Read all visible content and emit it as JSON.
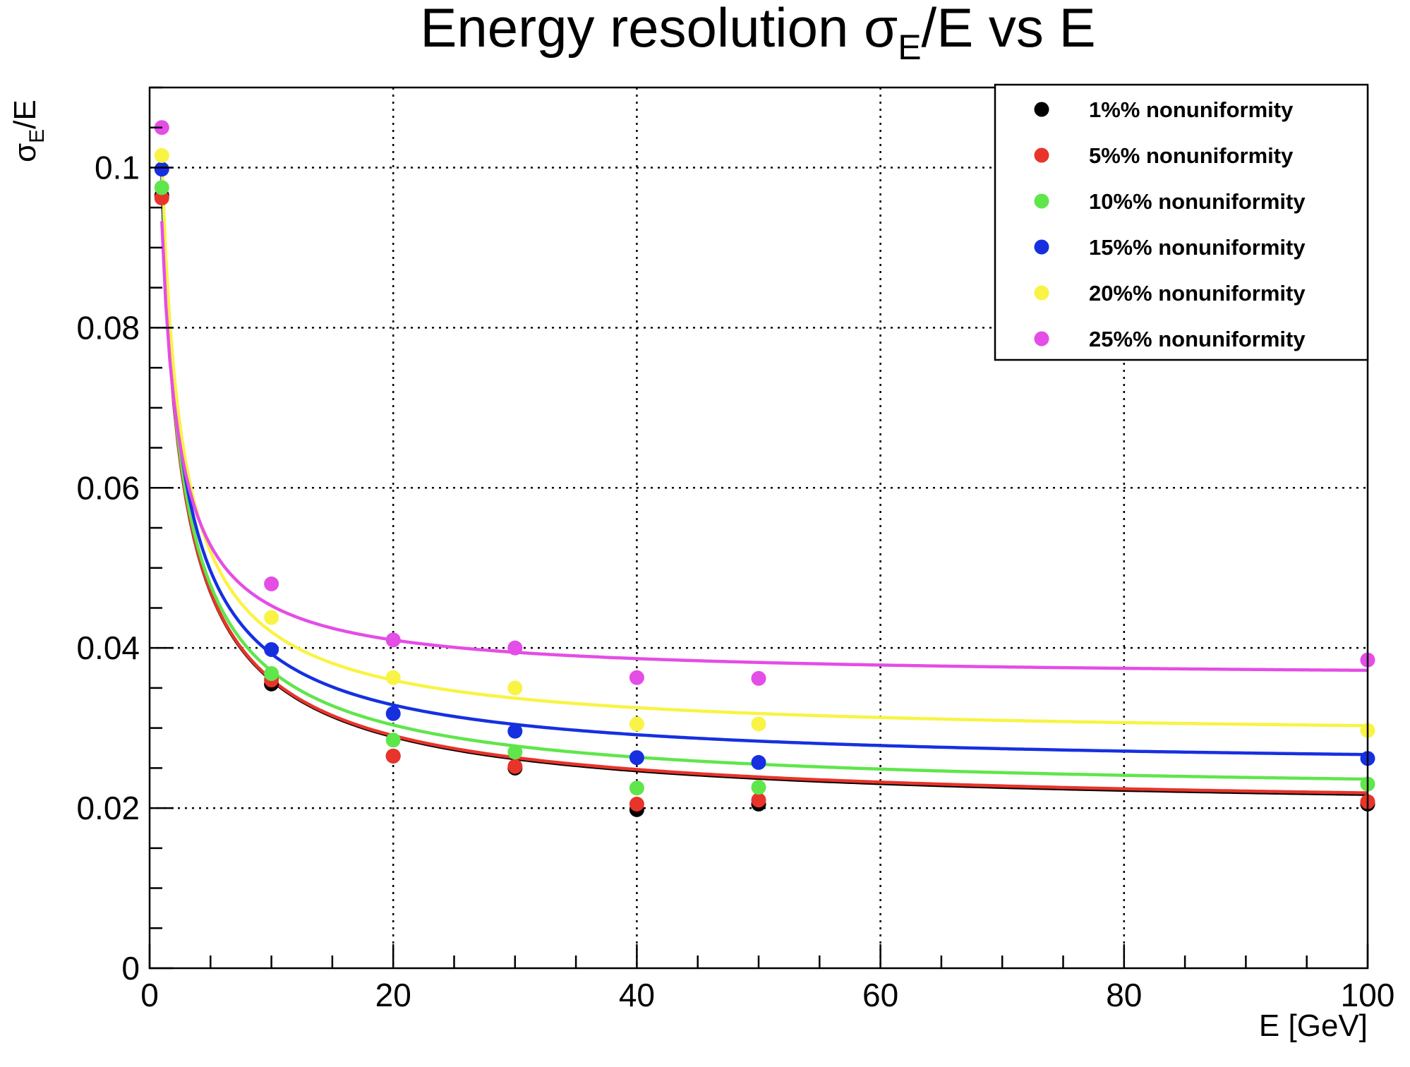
{
  "chart_data": {
    "type": "scatter",
    "title": {
      "prefix": "Energy resolution σ",
      "sub": "E",
      "suffix": "/E vs E"
    },
    "xlabel": "E [GeV]",
    "ylabel": {
      "prefix": "σ",
      "sub": "E",
      "suffix": "/E"
    },
    "xlim": [
      0,
      100
    ],
    "ylim": [
      0,
      0.11
    ],
    "xticks": [
      0,
      20,
      40,
      60,
      80,
      100
    ],
    "xtick_labels": [
      "0",
      "20",
      "40",
      "60",
      "80",
      "100"
    ],
    "yticks": [
      0,
      0.02,
      0.04,
      0.06,
      0.08,
      0.1
    ],
    "ytick_labels": [
      "0",
      "0.02",
      "0.04",
      "0.06",
      "0.08",
      "0.1"
    ],
    "grid": true,
    "legend_position": "top-right",
    "x": [
      1,
      10,
      20,
      30,
      40,
      50,
      100
    ],
    "series": [
      {
        "name": "1%% nonuniformity",
        "color": "#000000",
        "values": [
          0.0965,
          0.0355,
          0.0265,
          0.025,
          0.0198,
          0.0205,
          0.0205
        ],
        "fit": {
          "a": 0.0955,
          "b": 0.0008,
          "c": 0.0195
        }
      },
      {
        "name": "5%% nonuniformity",
        "color": "#e8342a",
        "values": [
          0.0962,
          0.036,
          0.0265,
          0.0252,
          0.0205,
          0.021,
          0.0208
        ],
        "fit": {
          "a": 0.0955,
          "b": 0.0008,
          "c": 0.0197
        }
      },
      {
        "name": "10%% nonuniformity",
        "color": "#5fe64b",
        "values": [
          0.0975,
          0.0368,
          0.0285,
          0.027,
          0.0225,
          0.0226,
          0.023
        ],
        "fit": {
          "a": 0.0955,
          "b": 0.0008,
          "c": 0.0216
        }
      },
      {
        "name": "15%% nonuniformity",
        "color": "#1630e0",
        "values": [
          0.0998,
          0.0398,
          0.0318,
          0.0296,
          0.0263,
          0.0257,
          0.0262
        ],
        "fit": {
          "a": 0.096,
          "b": 0.0008,
          "c": 0.0249
        }
      },
      {
        "name": "20%% nonuniformity",
        "color": "#f9f345",
        "values": [
          0.1015,
          0.0438,
          0.0363,
          0.035,
          0.0305,
          0.0305,
          0.0297
        ],
        "fit": {
          "a": 0.097,
          "b": 0.0008,
          "c": 0.0287
        }
      },
      {
        "name": "25%% nonuniformity",
        "color": "#e44de6",
        "values": [
          0.105,
          0.048,
          0.041,
          0.04,
          0.0363,
          0.0362,
          0.0385
        ],
        "fit": {
          "a": 0.086,
          "b": 0.0008,
          "c": 0.0362
        }
      }
    ]
  }
}
